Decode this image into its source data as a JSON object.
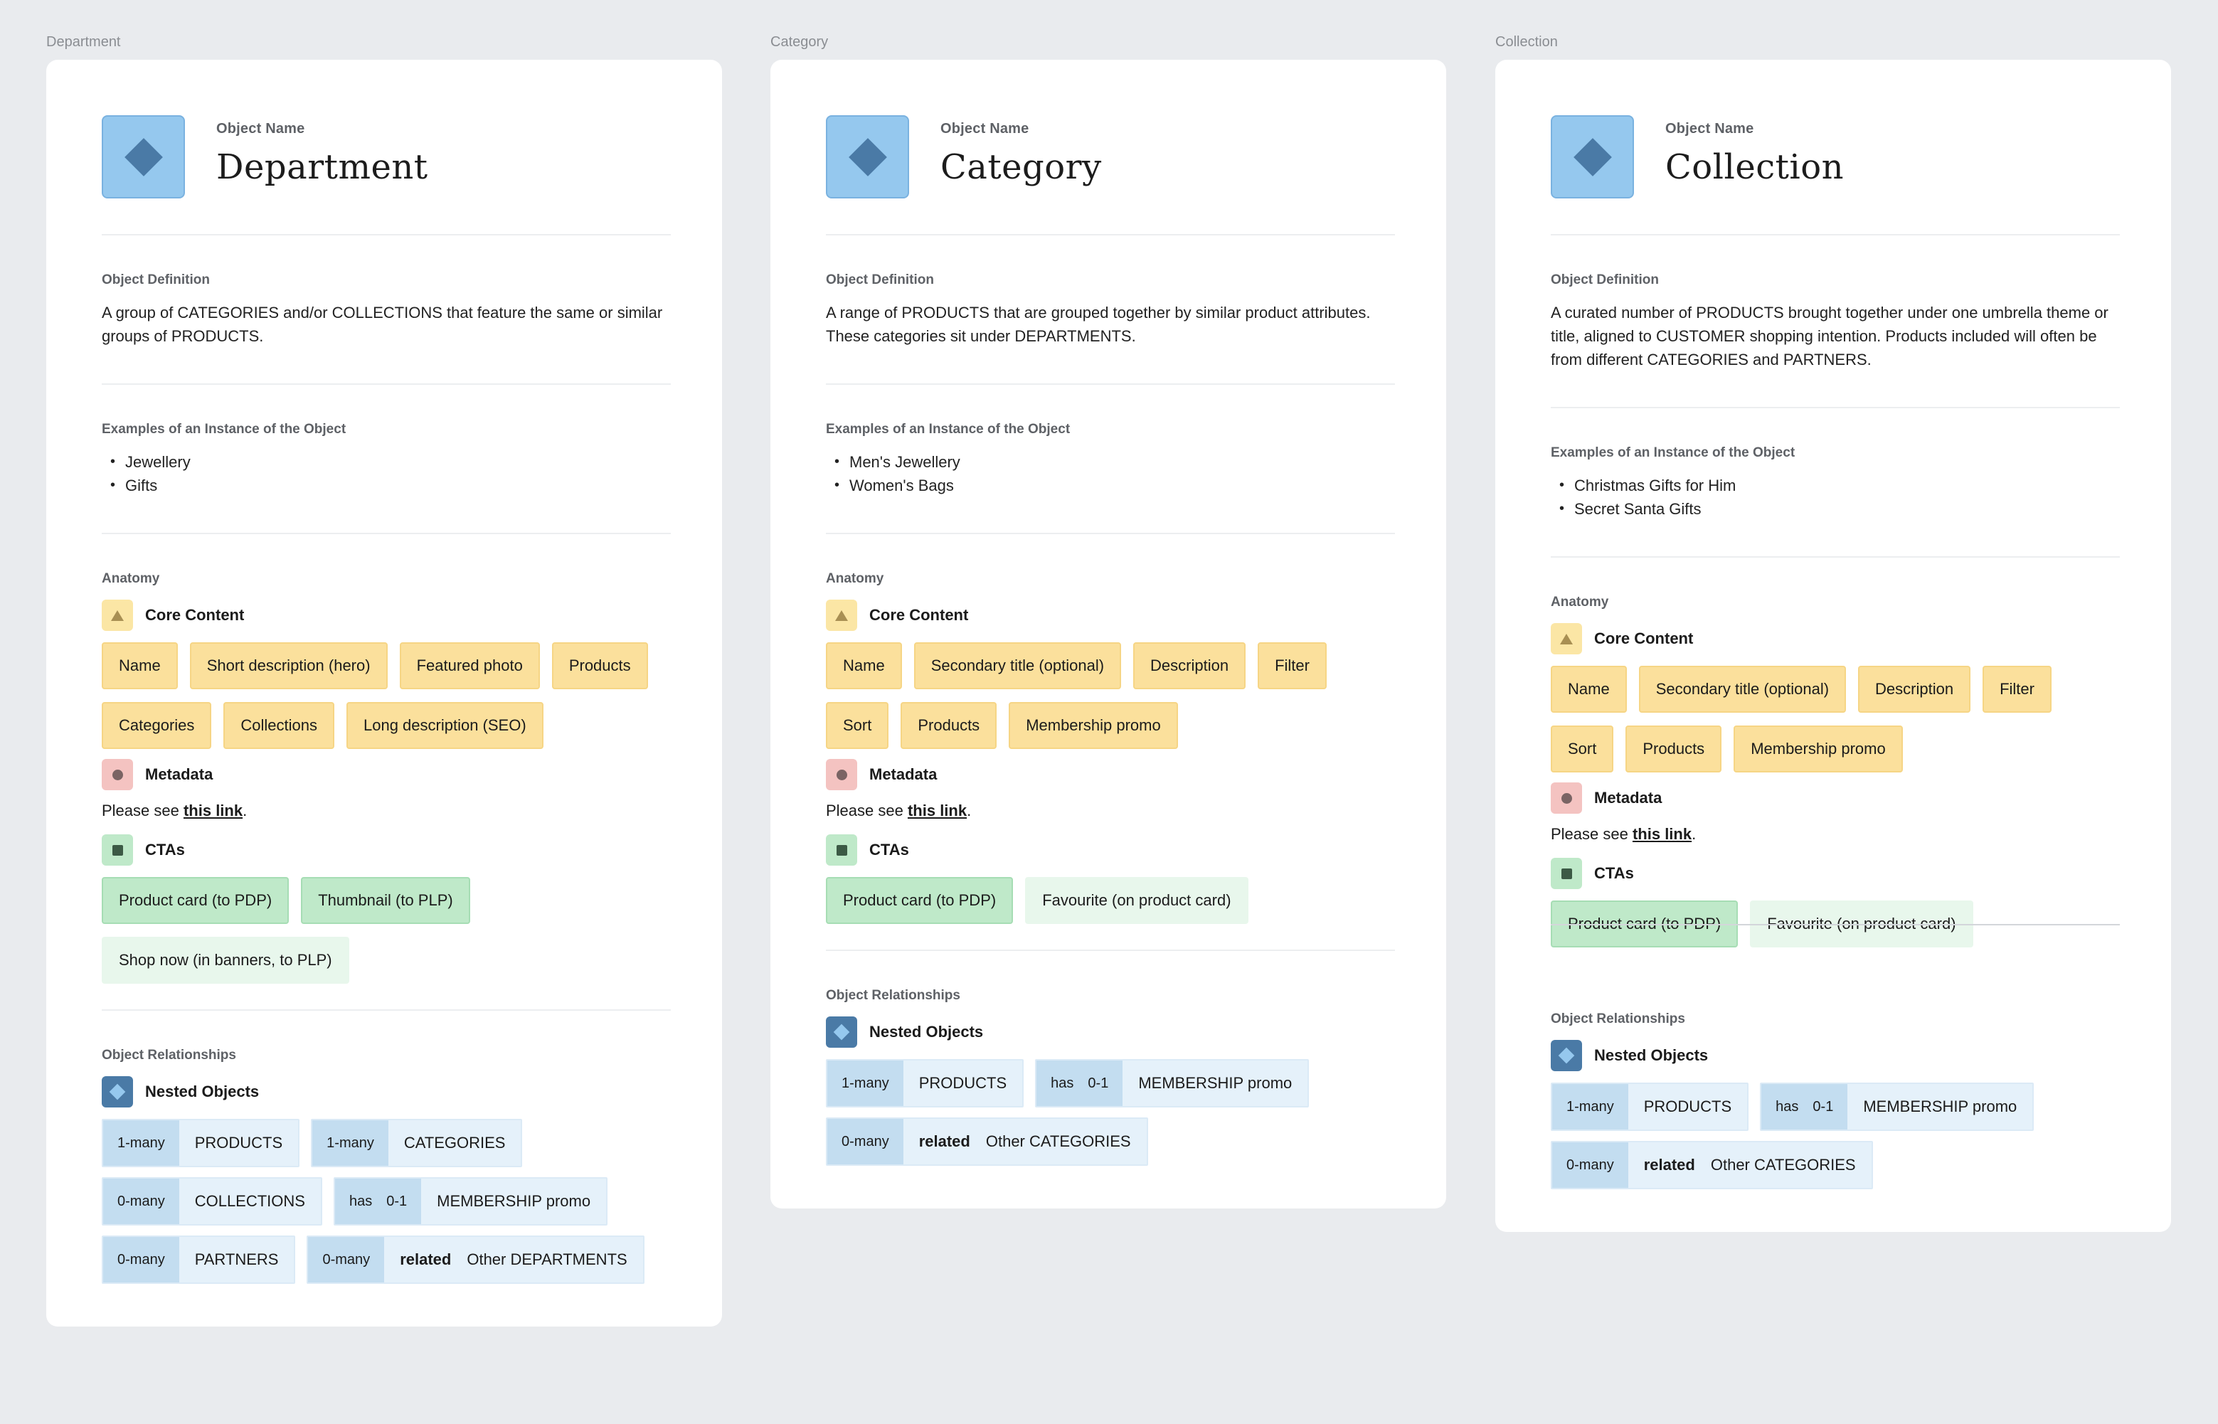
{
  "labels": {
    "object_name": "Object Name",
    "object_definition": "Object Definition",
    "examples": "Examples of an Instance of the Object",
    "anatomy": "Anatomy",
    "core_content": "Core Content",
    "metadata": "Metadata",
    "ctas": "CTAs",
    "relationships": "Object Relationships",
    "nested_objects": "Nested Objects",
    "please_see": "Please see ",
    "this_link": "this link",
    "period": "."
  },
  "columns": [
    {
      "frame_label": "Department",
      "name": "Department",
      "definition": "A group of CATEGORIES and/or COLLECTIONS that feature the same or similar groups of PRODUCTS.",
      "examples": [
        "Jewellery",
        "Gifts"
      ],
      "core": [
        "Name",
        "Short description (hero)",
        "Featured photo",
        "Products",
        "Categories",
        "Collections",
        "Long description (SEO)"
      ],
      "ctas": [
        {
          "label": "Product card (to PDP)",
          "style": "cta"
        },
        {
          "label": "Thumbnail (to PLP)",
          "style": "cta"
        },
        {
          "label": "Shop now (in banners, to PLP)",
          "style": "cta-light"
        }
      ],
      "relationships": [
        {
          "card": "1-many",
          "has": "",
          "kind": "",
          "target": "PRODUCTS"
        },
        {
          "card": "1-many",
          "has": "",
          "kind": "",
          "target": "CATEGORIES"
        },
        {
          "card": "0-many",
          "has": "",
          "kind": "",
          "target": "COLLECTIONS"
        },
        {
          "card": "0-1",
          "has": "has",
          "kind": "",
          "target": "MEMBERSHIP promo"
        },
        {
          "card": "0-many",
          "has": "",
          "kind": "",
          "target": "PARTNERS"
        },
        {
          "card": "0-many",
          "has": "",
          "kind": "related",
          "target": "Other DEPARTMENTS"
        }
      ]
    },
    {
      "frame_label": "Category",
      "name": "Category",
      "definition": "A range of PRODUCTS that are grouped together by similar product attributes. These categories sit under DEPARTMENTS.",
      "examples": [
        "Men's Jewellery",
        "Women's Bags"
      ],
      "core": [
        "Name",
        "Secondary title (optional)",
        "Description",
        "Filter",
        "Sort",
        "Products",
        "Membership promo"
      ],
      "ctas": [
        {
          "label": "Product card (to PDP)",
          "style": "cta"
        },
        {
          "label": "Favourite (on product card)",
          "style": "cta-light"
        }
      ],
      "relationships": [
        {
          "card": "1-many",
          "has": "",
          "kind": "",
          "target": "PRODUCTS"
        },
        {
          "card": "0-1",
          "has": "has",
          "kind": "",
          "target": "MEMBERSHIP promo"
        },
        {
          "card": "0-many",
          "has": "",
          "kind": "related",
          "target": "Other CATEGORIES"
        }
      ]
    },
    {
      "frame_label": "Collection",
      "name": "Collection",
      "definition": "A curated number of PRODUCTS brought together under one umbrella theme or title, aligned to CUSTOMER shopping intention. Products included will often be from different CATEGORIES and PARTNERS.",
      "examples": [
        "Christmas Gifts for Him",
        "Secret Santa Gifts"
      ],
      "core": [
        "Name",
        "Secondary title (optional)",
        "Description",
        "Filter",
        "Sort",
        "Products",
        "Membership promo"
      ],
      "ctas": [
        {
          "label": "Product card (to PDP)",
          "style": "cta"
        },
        {
          "label": "Favourite (on product card)",
          "style": "cta-light"
        }
      ],
      "relationships": [
        {
          "card": "1-many",
          "has": "",
          "kind": "",
          "target": "PRODUCTS"
        },
        {
          "card": "0-1",
          "has": "has",
          "kind": "",
          "target": "MEMBERSHIP promo"
        },
        {
          "card": "0-many",
          "has": "",
          "kind": "related",
          "target": "Other CATEGORIES"
        }
      ]
    }
  ],
  "colors": {
    "background": "#e9ebee",
    "object_icon": "#95c8ee",
    "core_chip": "#fbe09c",
    "cta_chip": "#bfe9c9",
    "cta_chip_light": "#e8f7ec",
    "rel_card": "#c3ddf0",
    "rel_target": "#e5f1fa"
  },
  "icons": {
    "object": "diamond-icon",
    "core": "triangle-icon",
    "metadata": "circle-icon",
    "ctas": "square-icon",
    "nested": "diamond-icon"
  }
}
